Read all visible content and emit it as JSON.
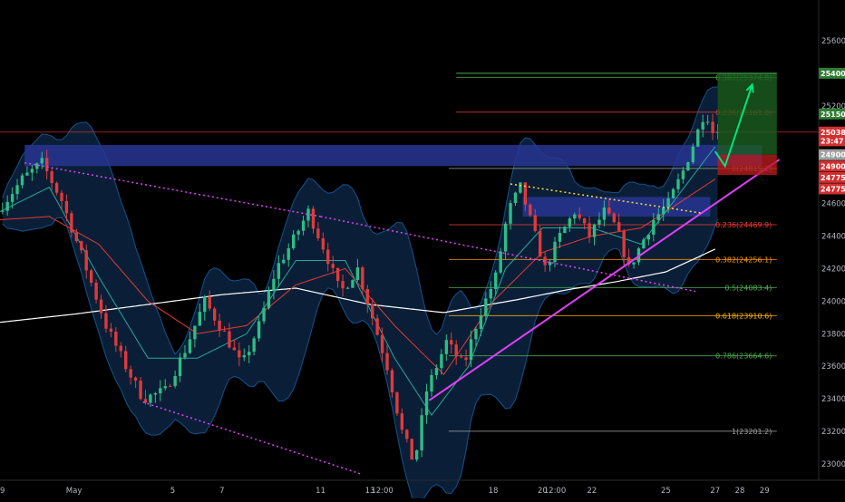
{
  "chart_data": {
    "type": "candlestick",
    "title": "",
    "xlabel": "",
    "ylabel": "",
    "ylim": [
      22900,
      25850
    ],
    "grid": false,
    "background": "#000000",
    "y_ticks": [
      23000,
      23200,
      23400,
      23600,
      23800,
      24000,
      24200,
      24400,
      24600,
      24800,
      25000,
      25200,
      25400,
      25600
    ],
    "y_tick_labels": [
      "23000.0",
      "23200.0",
      "23400.0",
      "23600.0",
      "23800.0",
      "24000.0",
      "24200.0",
      "24400.0",
      "24600.0",
      "",
      "",
      "25200.0",
      "",
      "25600.0"
    ],
    "x_ticks": [
      {
        "label": "9",
        "day": 0
      },
      {
        "label": "May",
        "day": 3
      },
      {
        "label": "5",
        "day": 7
      },
      {
        "label": "7",
        "day": 9
      },
      {
        "label": "11",
        "day": 13
      },
      {
        "label": "13",
        "day": 15
      },
      {
        "label": "12:00",
        "day": 15.5
      },
      {
        "label": "18",
        "day": 20
      },
      {
        "label": "20",
        "day": 22
      },
      {
        "label": "12:00",
        "day": 22.5
      },
      {
        "label": "22",
        "day": 24
      },
      {
        "label": "25",
        "day": 27
      },
      {
        "label": "27",
        "day": 29
      },
      {
        "label": "28",
        "day": 30
      },
      {
        "label": "29",
        "day": 31
      }
    ],
    "keypoints": [
      {
        "day": 0.0,
        "price": 24550
      },
      {
        "day": 1.0,
        "price": 24750
      },
      {
        "day": 1.8,
        "price": 24850
      },
      {
        "day": 2.6,
        "price": 24620
      },
      {
        "day": 3.6,
        "price": 24200
      },
      {
        "day": 4.4,
        "price": 23850
      },
      {
        "day": 5.2,
        "price": 23600
      },
      {
        "day": 5.9,
        "price": 23400
      },
      {
        "day": 6.8,
        "price": 23450
      },
      {
        "day": 7.6,
        "price": 23700
      },
      {
        "day": 8.4,
        "price": 24000
      },
      {
        "day": 9.2,
        "price": 23800
      },
      {
        "day": 9.9,
        "price": 23600
      },
      {
        "day": 10.6,
        "price": 23850
      },
      {
        "day": 11.3,
        "price": 24200
      },
      {
        "day": 11.9,
        "price": 24350
      },
      {
        "day": 12.6,
        "price": 24550
      },
      {
        "day": 13.3,
        "price": 24300
      },
      {
        "day": 13.9,
        "price": 24050
      },
      {
        "day": 14.6,
        "price": 24200
      },
      {
        "day": 15.2,
        "price": 23900
      },
      {
        "day": 15.8,
        "price": 23600
      },
      {
        "day": 16.4,
        "price": 23200
      },
      {
        "day": 16.9,
        "price": 23000
      },
      {
        "day": 17.4,
        "price": 23450
      },
      {
        "day": 18.2,
        "price": 23750
      },
      {
        "day": 18.9,
        "price": 23600
      },
      {
        "day": 19.5,
        "price": 23900
      },
      {
        "day": 20.2,
        "price": 24150
      },
      {
        "day": 20.7,
        "price": 24550
      },
      {
        "day": 21.2,
        "price": 24700
      },
      {
        "day": 21.7,
        "price": 24450
      },
      {
        "day": 22.2,
        "price": 24200
      },
      {
        "day": 22.8,
        "price": 24400
      },
      {
        "day": 23.4,
        "price": 24550
      },
      {
        "day": 24.0,
        "price": 24400
      },
      {
        "day": 24.6,
        "price": 24550
      },
      {
        "day": 25.1,
        "price": 24450
      },
      {
        "day": 25.6,
        "price": 24200
      },
      {
        "day": 26.1,
        "price": 24350
      },
      {
        "day": 26.6,
        "price": 24500
      },
      {
        "day": 27.2,
        "price": 24600
      },
      {
        "day": 27.8,
        "price": 24800
      },
      {
        "day": 28.3,
        "price": 25000
      },
      {
        "day": 28.7,
        "price": 25180
      },
      {
        "day": 29.0,
        "price": 25040
      }
    ],
    "moving_averages": [
      {
        "color": "#ffffff",
        "points": [
          [
            0,
            23870
          ],
          [
            3,
            23920
          ],
          [
            6,
            23980
          ],
          [
            9,
            24040
          ],
          [
            12,
            24080
          ],
          [
            15,
            23980
          ],
          [
            18,
            23930
          ],
          [
            21,
            24010
          ],
          [
            23,
            24070
          ],
          [
            25,
            24120
          ],
          [
            27,
            24180
          ],
          [
            28.3,
            24270
          ],
          [
            29,
            24320
          ]
        ]
      },
      {
        "color": "#e53935",
        "points": [
          [
            0,
            24500
          ],
          [
            2,
            24520
          ],
          [
            4,
            24350
          ],
          [
            6,
            24000
          ],
          [
            8,
            23800
          ],
          [
            10,
            23850
          ],
          [
            12,
            24100
          ],
          [
            14,
            24200
          ],
          [
            16,
            23850
          ],
          [
            18,
            23550
          ],
          [
            20,
            24000
          ],
          [
            22,
            24300
          ],
          [
            24,
            24400
          ],
          [
            26,
            24450
          ],
          [
            28,
            24650
          ],
          [
            29,
            24750
          ]
        ]
      },
      {
        "color": "#26a69a",
        "points": [
          [
            0,
            24550
          ],
          [
            2,
            24700
          ],
          [
            4,
            24150
          ],
          [
            6,
            23650
          ],
          [
            8,
            23650
          ],
          [
            10,
            23800
          ],
          [
            12,
            24250
          ],
          [
            14,
            24250
          ],
          [
            16,
            23650
          ],
          [
            17.5,
            23300
          ],
          [
            19,
            23600
          ],
          [
            20.5,
            24200
          ],
          [
            22,
            24450
          ],
          [
            24,
            24450
          ],
          [
            26,
            24350
          ],
          [
            27.5,
            24650
          ],
          [
            29,
            24950
          ]
        ]
      }
    ],
    "fib_levels": [
      {
        "label": "0.382(25374.8)",
        "price": 25374.8,
        "color": "#4caf50"
      },
      {
        "label": "0.236(25161.0)",
        "price": 25161.0,
        "color": "#e53935"
      },
      {
        "label": "0(24815.2)",
        "price": 24815.2,
        "color": "#9e9e9e"
      },
      {
        "label": "0.236(24469.9)",
        "price": 24469.9,
        "color": "#e53935"
      },
      {
        "label": "0.382(24256.1)",
        "price": 24256.1,
        "color": "#ff9800"
      },
      {
        "label": "0.5(24083.4)",
        "price": 24083.4,
        "color": "#4caf50"
      },
      {
        "label": "0.618(23910.6)",
        "price": 23910.6,
        "color": "#ffb300"
      },
      {
        "label": "0.786(23664.6)",
        "price": 23664.6,
        "color": "#4caf50"
      },
      {
        "label": "1(23201.2)",
        "price": 23201.2,
        "color": "#9e9e9e"
      }
    ],
    "price_labels": [
      {
        "label": "25400.0",
        "price": 25400,
        "color": "#2e7d32"
      },
      {
        "label": "25150.0",
        "price": 25150,
        "color": "#2e7d32"
      },
      {
        "label": "25038.5",
        "price": 25038.5,
        "color": "#d32f2f"
      },
      {
        "label": "23:47",
        "price": 24985,
        "color": "#d32f2f"
      },
      {
        "label": "24900.0",
        "price": 24900,
        "color": "#9e9e9e"
      },
      {
        "label": "24900.0",
        "price": 24830,
        "color": "#d32f2f"
      },
      {
        "label": "24775.0",
        "price": 24760,
        "color": "#d32f2f"
      },
      {
        "label": "24775.0",
        "price": 24690,
        "color": "#d32f2f"
      }
    ],
    "current_price": 25038.5,
    "current_price_color": "#d32f2f",
    "support_zones": [
      {
        "from_day": 1.0,
        "to_day": 30.9,
        "low": 24830,
        "high": 24960,
        "color": "#283593"
      },
      {
        "from_day": 21.2,
        "to_day": 28.8,
        "low": 24520,
        "high": 24640,
        "color": "#283593"
      }
    ],
    "trade_box": {
      "from_day": 29.1,
      "to_day": 31.5,
      "entry": 24900,
      "target": 25400,
      "stop": 24775,
      "profit_color": "#1b5e20",
      "loss_color": "#b71c1c"
    },
    "trendlines": [
      {
        "from": [
          1.0,
          24850
        ],
        "to": [
          13.0,
          24520
        ],
        "color": "#e040fb",
        "style": "dotted"
      },
      {
        "from": [
          13.0,
          24520
        ],
        "to": [
          28.2,
          24060
        ],
        "color": "#e040fb",
        "style": "dotted"
      },
      {
        "from": [
          5.8,
          23380
        ],
        "to": [
          14.6,
          22940
        ],
        "color": "#e040fb",
        "style": "dotted"
      },
      {
        "from": [
          17.4,
          23390
        ],
        "to": [
          31.6,
          24870
        ],
        "color": "#e040fb",
        "style": "solid"
      },
      {
        "from": [
          20.7,
          24720
        ],
        "to": [
          28.5,
          24540
        ],
        "color": "#fdd835",
        "style": "dotted"
      }
    ],
    "projection_arrow": {
      "color": "#00e676",
      "points": [
        [
          29.0,
          24920
        ],
        [
          29.4,
          24830
        ],
        [
          30.5,
          25330
        ]
      ]
    }
  }
}
